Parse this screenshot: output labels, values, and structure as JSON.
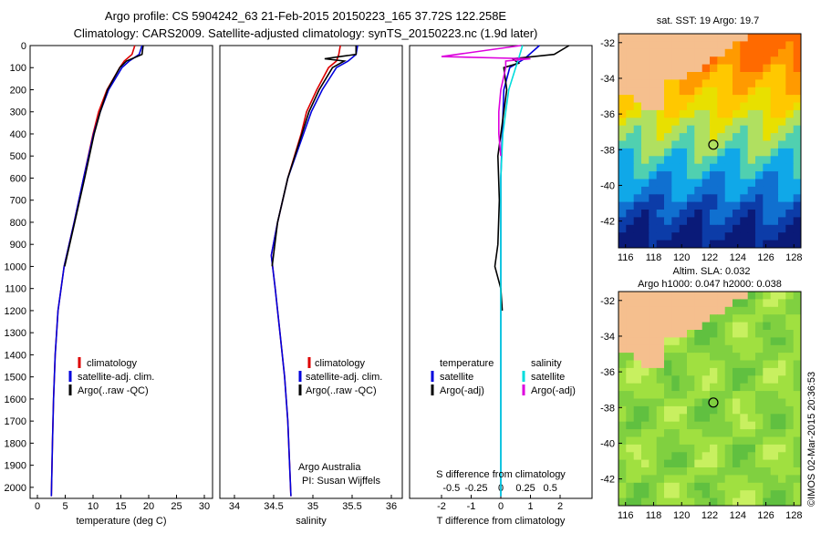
{
  "header": {
    "line1": "Argo profile: CS 5904242_63 21-Feb-2015 20150223_165 37.72S 122.258E",
    "line2": "Climatology: CARS2009. Satellite-adjusted climatology: synTS_20150223.nc (1.9d later)"
  },
  "credits": {
    "org": "Argo Australia",
    "pi": "PI: Susan Wijffels",
    "stamp": "©IMOS 02-Mar-2015 20:36:53"
  },
  "colors": {
    "climatology": "#dd0000",
    "satellite": "#0000dd",
    "argo": "#000000",
    "sat_salinity": "#00dddd",
    "argo_salinity": "#dd00dd",
    "land": "#f5bf8e"
  },
  "chart_data": [
    {
      "type": "line",
      "xlabel": "temperature (deg C)",
      "xticks": [
        "0",
        "5",
        "10",
        "15",
        "20",
        "25",
        "30"
      ],
      "ylim": [
        0,
        2050
      ],
      "yticks": [
        "0",
        "100",
        "200",
        "300",
        "400",
        "500",
        "600",
        "700",
        "800",
        "900",
        "1000",
        "1100",
        "1200",
        "1300",
        "1400",
        "1500",
        "1600",
        "1700",
        "1800",
        "1900",
        "2000"
      ],
      "legend": [
        "climatology",
        "satellite-adj. clim.",
        "Argo(..raw -QC)"
      ],
      "series": [
        {
          "name": "climatology",
          "depth": [
            0,
            40,
            70,
            100,
            200,
            300,
            400,
            600,
            800,
            1000,
            1200,
            1400,
            1600,
            1800,
            2040
          ],
          "values": [
            17.5,
            17.0,
            15.6,
            14.8,
            12.5,
            11.0,
            10.0,
            8.3,
            6.6,
            4.8,
            3.7,
            3.2,
            2.9,
            2.7,
            2.5
          ]
        },
        {
          "name": "satellite-adj. clim.",
          "depth": [
            0,
            40,
            70,
            100,
            200,
            300,
            400,
            600,
            800,
            1000,
            1200,
            1400,
            1600,
            1800,
            2040
          ],
          "values": [
            18.8,
            18.3,
            16.5,
            15.2,
            12.8,
            11.3,
            10.1,
            8.3,
            6.6,
            4.8,
            3.7,
            3.2,
            2.9,
            2.7,
            2.5
          ]
        },
        {
          "name": "Argo(..raw -QC)",
          "depth": [
            0,
            40,
            70,
            100,
            200,
            300,
            400,
            600,
            800,
            1000
          ],
          "values": [
            19.0,
            18.8,
            16.0,
            14.8,
            12.6,
            11.3,
            10.2,
            8.5,
            6.7,
            4.9
          ]
        }
      ]
    },
    {
      "type": "line",
      "xlabel": "salinity",
      "xticks": [
        "34",
        "34.5",
        "35",
        "35.5",
        "36"
      ],
      "legend": [
        "climatology",
        "satellite-adj. clim.",
        "Argo(..raw -QC)"
      ],
      "series": [
        {
          "name": "climatology",
          "depth": [
            0,
            40,
            70,
            100,
            200,
            300,
            400,
            600,
            800,
            950,
            1100,
            1300,
            1500,
            1700,
            2040
          ],
          "values": [
            35.35,
            35.33,
            35.3,
            35.2,
            35.05,
            34.92,
            34.85,
            34.68,
            34.55,
            34.47,
            34.52,
            34.58,
            34.64,
            34.68,
            34.72
          ]
        },
        {
          "name": "satellite-adj. clim.",
          "depth": [
            0,
            40,
            70,
            100,
            200,
            300,
            400,
            600,
            800,
            950,
            1100,
            1300,
            1500,
            1700,
            2040
          ],
          "values": [
            35.57,
            35.55,
            35.45,
            35.3,
            35.12,
            34.98,
            34.88,
            34.68,
            34.55,
            34.47,
            34.52,
            34.58,
            34.64,
            34.68,
            34.72
          ]
        },
        {
          "name": "Argo(..raw -QC)",
          "depth": [
            0,
            40,
            50,
            60,
            70,
            100,
            200,
            300,
            400,
            600,
            800,
            1000
          ],
          "values": [
            35.55,
            35.55,
            35.35,
            35.15,
            35.4,
            35.25,
            35.08,
            34.95,
            34.86,
            34.68,
            34.55,
            34.48
          ]
        }
      ]
    },
    {
      "type": "line",
      "xlabel": "T difference from climatology",
      "xlabel_top": "S difference from climatology",
      "xticks": [
        "-2",
        "-1",
        "0",
        "1",
        "2"
      ],
      "xticks_top": [
        "-0.5",
        "-0.25",
        "0",
        "0.25",
        "0.5"
      ],
      "legend_left_title": "temperature",
      "legend_right_title": "salinity",
      "legend": [
        "satellite",
        "Argo(-adj)",
        "satellite",
        "Argo(-adj)"
      ],
      "series": [
        {
          "name": "temperature satellite",
          "depth": [
            0,
            60,
            100,
            200,
            400,
            600,
            800,
            1000,
            1200,
            2040
          ],
          "values": [
            1.3,
            0.8,
            0.3,
            0.1,
            0.05,
            0,
            0,
            0,
            0,
            0
          ]
        },
        {
          "name": "temperature Argo(-adj)",
          "depth": [
            0,
            40,
            60,
            80,
            100,
            200,
            300,
            500,
            700,
            900,
            1000,
            1100,
            1200
          ],
          "values": [
            2.3,
            1.8,
            0.4,
            0.6,
            0.1,
            0.2,
            0.1,
            -0.1,
            -0.05,
            -0.1,
            -0.2,
            0.0,
            0.05
          ]
        },
        {
          "name": "salinity satellite",
          "depth": [
            0,
            60,
            100,
            200,
            300,
            400,
            600,
            800,
            1000,
            2040
          ],
          "values": [
            0.22,
            0.18,
            0.15,
            0.08,
            0.05,
            0.02,
            0.0,
            0.0,
            0.0,
            0.0
          ]
        },
        {
          "name": "salinity Argo(-adj)",
          "depth": [
            0,
            50,
            60,
            70,
            100,
            200,
            300,
            400,
            500
          ],
          "values": [
            0.2,
            -0.6,
            0.3,
            0.05,
            0.05,
            0.0,
            -0.02,
            -0.02,
            0.0
          ]
        }
      ]
    },
    {
      "type": "heatmap",
      "title": "sat. SST: 19 Argo: 19.7",
      "xticks": [
        "116",
        "118",
        "120",
        "122",
        "124",
        "126",
        "128"
      ],
      "yticks": [
        "-32",
        "-34",
        "-36",
        "-38",
        "-40",
        "-42"
      ],
      "marker": {
        "lon": 122.258,
        "lat": -37.72
      }
    },
    {
      "type": "heatmap",
      "title": "Altim. SLA: 0.032",
      "subtitle": "Argo h1000: 0.047 h2000: 0.038",
      "xticks": [
        "116",
        "118",
        "120",
        "122",
        "124",
        "126",
        "128"
      ],
      "yticks": [
        "-32",
        "-34",
        "-36",
        "-38",
        "-40",
        "-42"
      ],
      "marker": {
        "lon": 122.258,
        "lat": -37.72
      }
    }
  ]
}
